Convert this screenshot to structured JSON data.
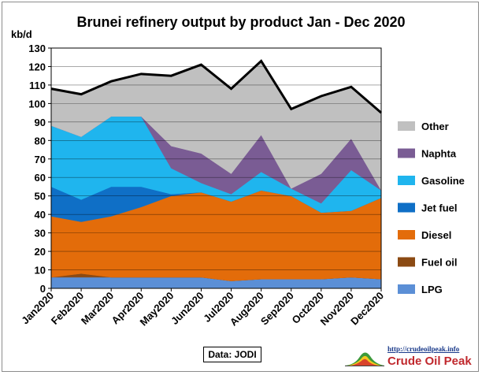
{
  "chart_data": {
    "type": "area",
    "title": "Brunei refinery output by product Jan - Dec 2020",
    "ylabel": "kb/d",
    "xlabel": "",
    "ylim": [
      0,
      130
    ],
    "yticks": [
      0,
      10,
      20,
      30,
      40,
      50,
      60,
      70,
      80,
      90,
      100,
      110,
      120,
      130
    ],
    "grid": true,
    "stacked": true,
    "legend_position": "right",
    "categories": [
      "Jan2020",
      "Feb2020",
      "Mar2020",
      "Apr2020",
      "May2020",
      "Jun2020",
      "Jul2020",
      "Aug2020",
      "Sep2020",
      "Oct2020",
      "Nov2020",
      "Dec2020"
    ],
    "series": [
      {
        "name": "LPG",
        "color": "#5b8fd6",
        "values": [
          6,
          6,
          6,
          6,
          6,
          6,
          4,
          5,
          5,
          5,
          6,
          5
        ]
      },
      {
        "name": "Fuel oil",
        "color": "#8b4a13",
        "values": [
          0,
          2,
          0,
          0,
          0,
          0,
          0,
          0,
          0,
          0,
          0,
          0
        ]
      },
      {
        "name": "Diesel",
        "color": "#e36c0a",
        "values": [
          33,
          28,
          33,
          38,
          44,
          46,
          43,
          48,
          45,
          36,
          36,
          44
        ]
      },
      {
        "name": "Jet fuel",
        "color": "#0f6fc6",
        "values": [
          16,
          12,
          16,
          11,
          1,
          0,
          0,
          0,
          0,
          0,
          0,
          0
        ]
      },
      {
        "name": "Gasoline",
        "color": "#1fb5ee",
        "values": [
          33,
          34,
          38,
          38,
          14,
          5,
          4,
          10,
          4,
          5,
          22,
          4
        ]
      },
      {
        "name": "Naphta",
        "color": "#7a5c94",
        "values": [
          0,
          0,
          0,
          0,
          12,
          16,
          11,
          20,
          0,
          16,
          17,
          0
        ]
      },
      {
        "name": "Other",
        "color": "#c0c0c0",
        "values": [
          20,
          23,
          19,
          23,
          38,
          48,
          46,
          40,
          43,
          42,
          28,
          42
        ]
      }
    ],
    "total_line": {
      "color": "#000000",
      "values": [
        108,
        105,
        112,
        116,
        115,
        121,
        108,
        123,
        97,
        104,
        109,
        95
      ]
    },
    "source_label": "Data: JODI"
  },
  "logo": {
    "url": "http://crudeoilpeak.info",
    "name": "Crude Oil Peak"
  }
}
